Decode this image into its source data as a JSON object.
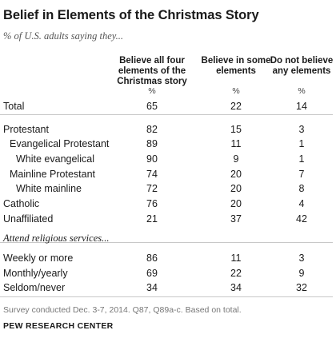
{
  "chart_data": {
    "type": "table",
    "title": "Belief in Elements of the Christmas Story",
    "subtitle": "% of U.S. adults saying they...",
    "columns": [
      {
        "label": "Believe all four elements of the Christmas story",
        "lines": [
          "Believe all four",
          "elements of the",
          "Christmas story"
        ],
        "unit": "%"
      },
      {
        "label": "Believe in some elements",
        "lines": [
          "Believe in some",
          "elements"
        ],
        "unit": "%"
      },
      {
        "label": "Do not believe any elements",
        "lines": [
          "Do not believe",
          "any elements"
        ],
        "unit": "%"
      }
    ],
    "rows": [
      {
        "label": "Total",
        "values": [
          65,
          22,
          14
        ]
      },
      {
        "label": "Protestant",
        "values": [
          82,
          15,
          3
        ]
      },
      {
        "label": "Evangelical Protestant",
        "values": [
          89,
          11,
          1
        ]
      },
      {
        "label": "White evangelical",
        "values": [
          90,
          9,
          1
        ]
      },
      {
        "label": "Mainline Protestant",
        "values": [
          74,
          20,
          7
        ]
      },
      {
        "label": "White mainline",
        "values": [
          72,
          20,
          8
        ]
      },
      {
        "label": "Catholic",
        "values": [
          76,
          20,
          4
        ]
      },
      {
        "label": "Unaffiliated",
        "values": [
          21,
          37,
          42
        ]
      },
      {
        "label": "Weekly or more",
        "values": [
          86,
          11,
          3
        ]
      },
      {
        "label": "Monthly/yearly",
        "values": [
          69,
          22,
          9
        ]
      },
      {
        "label": "Seldom/never",
        "values": [
          34,
          34,
          32
        ]
      }
    ],
    "section_label": "Attend religious services...",
    "source": "Survey conducted Dec. 3-7, 2014. Q87, Q89a-c. Based on total.",
    "brand": "PEW RESEARCH CENTER"
  }
}
